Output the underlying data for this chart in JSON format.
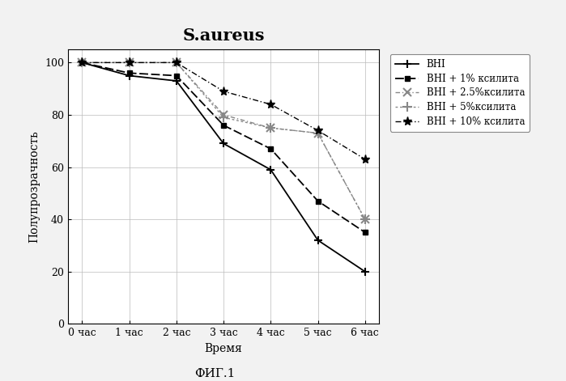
{
  "title": "S.aureus",
  "xlabel": "Время",
  "ylabel": "Полупрозрачность",
  "footnote": "ФИГ.1",
  "x_ticks": [
    0,
    1,
    2,
    3,
    4,
    5,
    6
  ],
  "x_tick_labels": [
    "0 час",
    "1 час",
    "2 час",
    "3 час",
    "4 час",
    "5 час",
    "6 час"
  ],
  "ylim": [
    0,
    105
  ],
  "yticks": [
    0,
    20,
    40,
    60,
    80,
    100
  ],
  "series": [
    {
      "label": "BHI",
      "values": [
        100,
        95,
        93,
        69,
        59,
        32,
        20
      ],
      "color": "#000000",
      "linestyle": "-",
      "marker": "+",
      "markersize": 7,
      "markeredgewidth": 1.5,
      "linewidth": 1.3,
      "dashes": []
    },
    {
      "label": "BHI + 1% ксилита",
      "values": [
        100,
        96,
        95,
        76,
        67,
        47,
        35
      ],
      "color": "#000000",
      "linestyle": "-",
      "marker": "s",
      "markersize": 5,
      "markeredgewidth": 1.0,
      "linewidth": 1.3,
      "dashes": [
        6,
        2
      ]
    },
    {
      "label": "BHI + 2.5%ксилита",
      "values": [
        100,
        100,
        100,
        80,
        75,
        73,
        40
      ],
      "color": "#888888",
      "linestyle": "--",
      "marker": "x",
      "markersize": 7,
      "markeredgewidth": 1.5,
      "linewidth": 1.0,
      "dashes": [
        4,
        2,
        1,
        2
      ]
    },
    {
      "label": "BHI + 5%ксилита",
      "values": [
        100,
        100,
        100,
        79,
        75,
        73,
        40
      ],
      "color": "#888888",
      "linestyle": "--",
      "marker": "+",
      "markersize": 8,
      "markeredgewidth": 1.5,
      "linewidth": 1.0,
      "dashes": [
        2,
        2
      ]
    },
    {
      "label": "BHI + 10% ксилита",
      "values": [
        100,
        100,
        100,
        89,
        84,
        74,
        63
      ],
      "color": "#000000",
      "linestyle": "-",
      "marker": "*",
      "markersize": 8,
      "markeredgewidth": 1.0,
      "linewidth": 1.0,
      "dashes": [
        5,
        2,
        1,
        2
      ]
    }
  ],
  "background_color": "#f2f2f2",
  "plot_bg_color": "#ffffff",
  "legend_fontsize": 8.5,
  "title_fontsize": 15,
  "axis_fontsize": 10,
  "tick_fontsize": 9,
  "footnote_fontsize": 11
}
